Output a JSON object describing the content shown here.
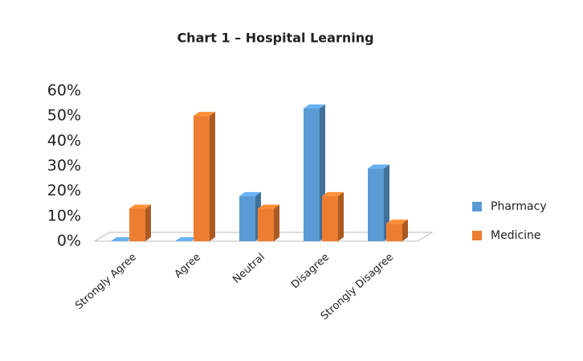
{
  "chart_data": {
    "type": "bar3d",
    "title": "Chart 1 – Hospital Learning",
    "categories": [
      "Strongly Agree",
      "Agree",
      "Neutral",
      "Disagree",
      "Strongly Disagree"
    ],
    "series": [
      {
        "name": "Pharmacy",
        "color": "#5b9bd5",
        "values": [
          0,
          0,
          18,
          53,
          29
        ]
      },
      {
        "name": "Medicine",
        "color": "#ed7d31",
        "values": [
          13,
          50,
          13,
          18,
          7
        ]
      }
    ],
    "ylim": [
      0,
      60
    ],
    "yticks": [
      {
        "value": 0,
        "label": "0%"
      },
      {
        "value": 10,
        "label": "10%"
      },
      {
        "value": 20,
        "label": "20%"
      },
      {
        "value": 30,
        "label": "30%"
      },
      {
        "value": 40,
        "label": "40%"
      },
      {
        "value": 50,
        "label": "50%"
      },
      {
        "value": 60,
        "label": "60%"
      }
    ],
    "legend": "right"
  }
}
